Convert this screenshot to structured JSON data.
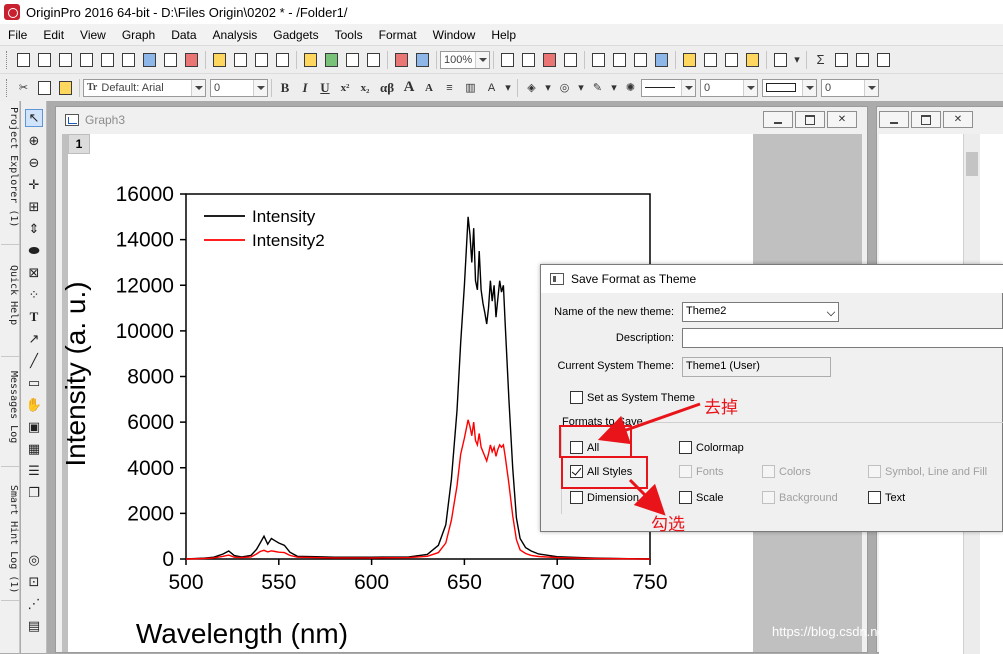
{
  "app": {
    "title": "OriginPro 2016 64-bit - D:\\Files Origin\\0202 * - /Folder1/"
  },
  "menu": {
    "items": [
      "File",
      "Edit",
      "View",
      "Graph",
      "Data",
      "Analysis",
      "Gadgets",
      "Tools",
      "Format",
      "Window",
      "Help"
    ]
  },
  "toolbar1": {
    "zoom_value": "100%"
  },
  "toolbar2": {
    "font_value": "Default: Arial",
    "font_size_value": "0",
    "bold_label": "B",
    "italic_label": "I",
    "underline_label": "U",
    "superscript_label": "x²",
    "subscript_label": "x₂",
    "greek_label": "αβ",
    "increase_font_label": "A",
    "decrease_font_label": "A",
    "line_width_value": "0",
    "pattern_value": "0"
  },
  "left_tabs": {
    "project_explorer": "Project Explorer (1)",
    "quick_help": "Quick Help",
    "messages_log": "Messages Log",
    "smart_hint_log": "Smart Hint Log (1)"
  },
  "graph_window": {
    "title": "Graph3",
    "layer_label": "1"
  },
  "chart_data": {
    "type": "line",
    "xlabel": "Wavelength (nm)",
    "ylabel": "Intensity (a. u.)",
    "xlim": [
      500,
      750
    ],
    "ylim": [
      0,
      16000
    ],
    "xticks": [
      "500",
      "550",
      "600",
      "650",
      "700",
      "750"
    ],
    "yticks": [
      "0",
      "2000",
      "4000",
      "6000",
      "8000",
      "10000",
      "12000",
      "14000",
      "16000"
    ],
    "legend_position": "top-left",
    "series": [
      {
        "name": "Intensity",
        "color": "#000000",
        "x": [
          500,
          510,
          515,
          520,
          523,
          526,
          530,
          535,
          538,
          540,
          542,
          544,
          546,
          548,
          550,
          553,
          556,
          560,
          570,
          580,
          600,
          620,
          630,
          636,
          640,
          643,
          646,
          648,
          650,
          652,
          653,
          654,
          655,
          656,
          657,
          658,
          659,
          660,
          661,
          662,
          663,
          664,
          665,
          666,
          667,
          668,
          669,
          670,
          671,
          672,
          674,
          676,
          678,
          680,
          683,
          686,
          690,
          700,
          720,
          750
        ],
        "y": [
          0,
          40,
          80,
          220,
          350,
          150,
          90,
          160,
          420,
          700,
          1000,
          650,
          900,
          800,
          700,
          600,
          300,
          120,
          100,
          80,
          80,
          90,
          200,
          600,
          1500,
          3500,
          6500,
          9500,
          12000,
          15000,
          14200,
          13000,
          14500,
          12200,
          11800,
          13500,
          11800,
          11200,
          10800,
          10300,
          11000,
          12200,
          11300,
          12000,
          10600,
          11400,
          12200,
          11700,
          12000,
          10300,
          7000,
          4000,
          1800,
          900,
          500,
          350,
          220,
          100,
          40,
          0
        ]
      },
      {
        "name": "Intensity2",
        "color": "#ff0000",
        "x": [
          500,
          510,
          515,
          520,
          523,
          526,
          530,
          535,
          538,
          540,
          542,
          544,
          546,
          548,
          550,
          553,
          556,
          560,
          570,
          580,
          600,
          620,
          630,
          636,
          640,
          643,
          646,
          648,
          650,
          652,
          653,
          654,
          655,
          656,
          657,
          658,
          659,
          660,
          661,
          662,
          663,
          664,
          665,
          666,
          667,
          668,
          669,
          670,
          671,
          672,
          674,
          676,
          678,
          680,
          683,
          686,
          690,
          700,
          720,
          750
        ],
        "y": [
          0,
          20,
          50,
          120,
          170,
          80,
          60,
          90,
          220,
          330,
          380,
          310,
          360,
          330,
          300,
          280,
          160,
          80,
          60,
          50,
          50,
          60,
          120,
          280,
          700,
          1700,
          3200,
          4600,
          5300,
          6100,
          5800,
          5400,
          6000,
          5200,
          5000,
          5500,
          4900,
          4700,
          4500,
          4300,
          4600,
          5000,
          4700,
          4900,
          4500,
          4800,
          5000,
          4900,
          5000,
          4500,
          3300,
          1900,
          850,
          400,
          240,
          160,
          110,
          60,
          20,
          0
        ]
      }
    ]
  },
  "dialog": {
    "title": "Save Format as Theme",
    "name_label": "Name of the new theme:",
    "name_value": "Theme2",
    "description_label": "Description:",
    "description_value": "",
    "current_theme_label": "Current System Theme:",
    "current_theme_value": "Theme1 (User)",
    "set_system_theme_label": "Set as System Theme",
    "formats_group_label": "Formats to Save",
    "chk_all": "All",
    "chk_colormap": "Colormap",
    "chk_all_styles": "All Styles",
    "chk_fonts": "Fonts",
    "chk_colors": "Colors",
    "chk_symbol": "Symbol, Line and Fill",
    "chk_dimension": "Dimension",
    "chk_scale": "Scale",
    "chk_background": "Background",
    "chk_text": "Text"
  },
  "annotations": {
    "remove_text": "去掉",
    "check_text": "勾选",
    "color": "#e8141a"
  },
  "watermark": "https://blog.csdn.net/XD_Yangf"
}
